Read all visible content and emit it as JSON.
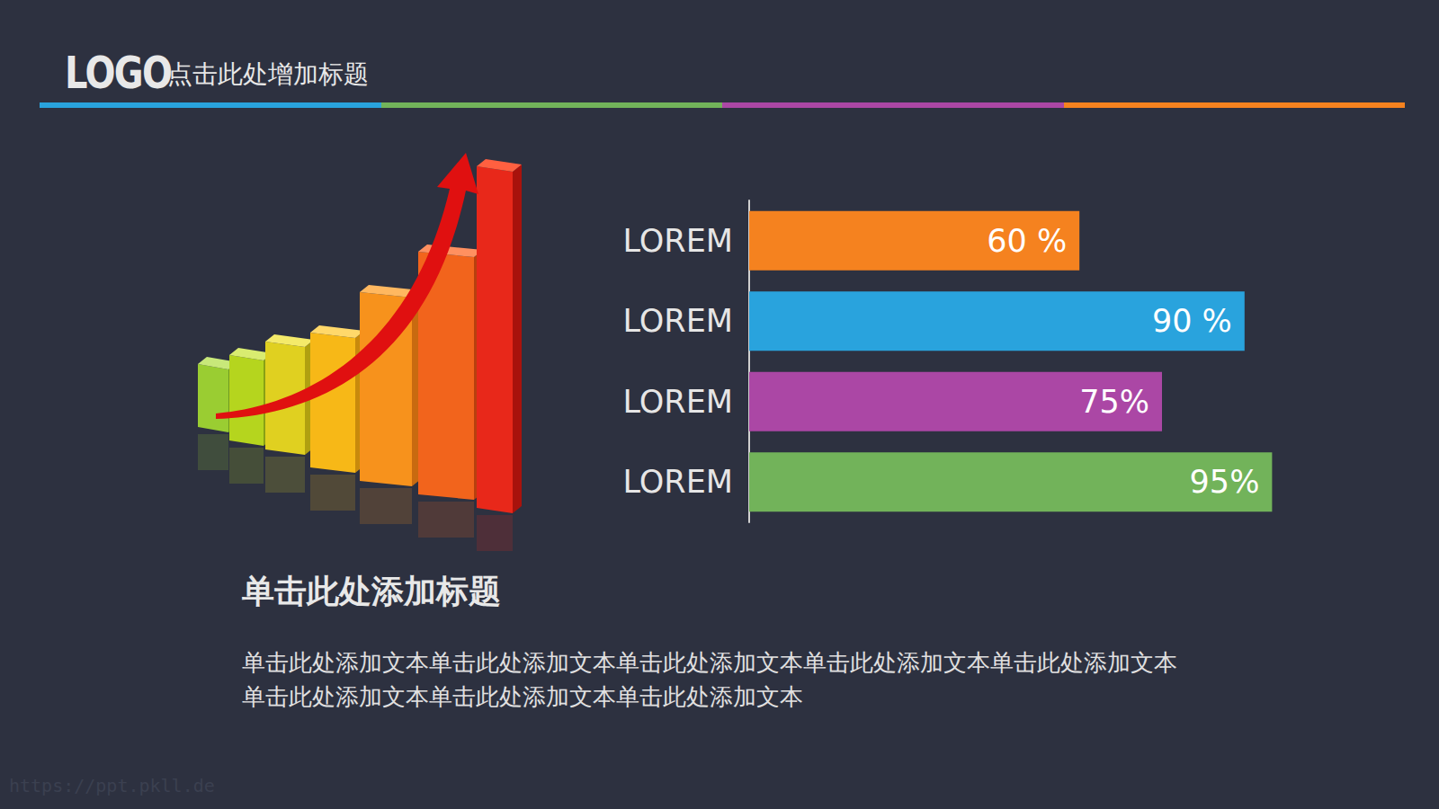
{
  "page": {
    "logo": "LOGO",
    "header": "点击此处增加标题",
    "heading": "单击此处添加标题",
    "body": "单击此处添加文本单击此处添加文本单击此处添加文本单击此处添加文本单击此处添加文本单击此处添加文本单击此处添加文本单击此处添加文本",
    "watermark": "https://ppt.pkll.de"
  },
  "chart_data": {
    "type": "bar",
    "orientation": "horizontal",
    "categories": [
      "LOREM",
      "LOREM",
      "LOREM",
      "LOREM"
    ],
    "values": [
      60,
      90,
      75,
      95
    ],
    "value_labels": [
      "60 %",
      "90 %",
      "75%",
      "95%"
    ],
    "colors": [
      "#f5821f",
      "#29a3dd",
      "#ab47a5",
      "#72b35a"
    ],
    "xlim": [
      0,
      100
    ],
    "data_labels": true,
    "tick_labels": "y",
    "grid": false
  }
}
